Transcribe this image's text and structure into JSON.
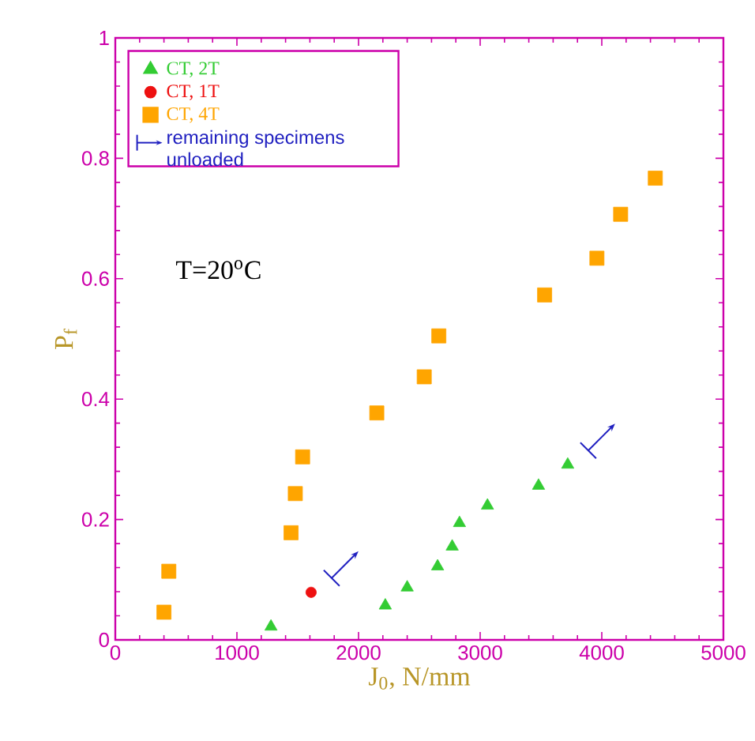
{
  "chart_data": {
    "type": "scatter",
    "xlabel": "J$_{0}$, N/mm",
    "ylabel": "P$_{f}$",
    "xlim": [
      0,
      5000
    ],
    "ylim": [
      0,
      1
    ],
    "xticks": [
      0,
      1000,
      2000,
      3000,
      4000,
      5000
    ],
    "yticks": [
      0,
      0.2,
      0.4,
      0.6,
      0.8,
      1
    ],
    "legend": "top left",
    "grid": false,
    "annotations": [
      "T=20$^{o}$C",
      "remaining specimens unloaded"
    ],
    "series": [
      {
        "name": "CT, 2T",
        "color": "#33cc33",
        "marker": "triangle",
        "x": [
          1280,
          2220,
          2400,
          2650,
          2770,
          2830,
          3060,
          3480,
          3720
        ],
        "values": [
          0.022,
          0.057,
          0.087,
          0.122,
          0.155,
          0.194,
          0.223,
          0.256,
          0.291
        ]
      },
      {
        "name": "CT, 1T",
        "color": "#ee1111",
        "marker": "circle",
        "x": [
          1610
        ],
        "values": [
          0.079
        ]
      },
      {
        "name": "CT, 4T",
        "color": "#ffa500",
        "marker": "square",
        "x": [
          400,
          440,
          1445,
          1480,
          1540,
          2150,
          2540,
          2660,
          3530,
          3960,
          4155,
          4440
        ],
        "values": [
          0.046,
          0.114,
          0.178,
          0.243,
          0.304,
          0.377,
          0.437,
          0.505,
          0.573,
          0.634,
          0.707,
          0.767
        ]
      }
    ]
  }
}
